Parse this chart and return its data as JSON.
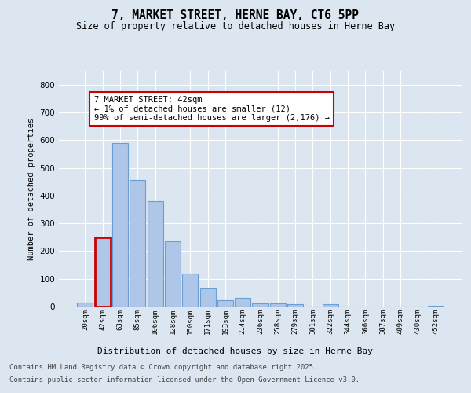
{
  "title_line1": "7, MARKET STREET, HERNE BAY, CT6 5PP",
  "title_line2": "Size of property relative to detached houses in Herne Bay",
  "xlabel": "Distribution of detached houses by size in Herne Bay",
  "ylabel": "Number of detached properties",
  "categories": [
    "20sqm",
    "42sqm",
    "63sqm",
    "85sqm",
    "106sqm",
    "128sqm",
    "150sqm",
    "171sqm",
    "193sqm",
    "214sqm",
    "236sqm",
    "258sqm",
    "279sqm",
    "301sqm",
    "322sqm",
    "344sqm",
    "366sqm",
    "387sqm",
    "409sqm",
    "430sqm",
    "452sqm"
  ],
  "values": [
    15,
    250,
    590,
    455,
    380,
    235,
    120,
    65,
    22,
    32,
    10,
    10,
    8,
    0,
    8,
    0,
    0,
    0,
    0,
    0,
    2
  ],
  "bar_color": "#aec6e8",
  "bar_edge_color": "#6b9fd4",
  "highlight_bar_index": 1,
  "highlight_bar_edge_color": "#cc0000",
  "annotation_box_text": "7 MARKET STREET: 42sqm\n← 1% of detached houses are smaller (12)\n99% of semi-detached houses are larger (2,176) →",
  "annotation_box_color": "#ffffff",
  "annotation_box_edge_color": "#cc0000",
  "annotation_fontsize": 7.5,
  "ylim": [
    0,
    850
  ],
  "yticks": [
    0,
    100,
    200,
    300,
    400,
    500,
    600,
    700,
    800
  ],
  "background_color": "#dce6f0",
  "plot_background_color": "#dce6f0",
  "grid_color": "#ffffff",
  "footer_line1": "Contains HM Land Registry data © Crown copyright and database right 2025.",
  "footer_line2": "Contains public sector information licensed under the Open Government Licence v3.0.",
  "title_fontsize": 10.5,
  "subtitle_fontsize": 8.5,
  "footer_fontsize": 6.5
}
